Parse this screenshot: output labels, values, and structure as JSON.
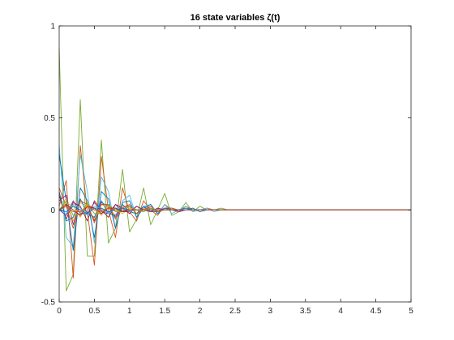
{
  "chart_data": {
    "type": "line",
    "title": "16 state variables ζ(t)",
    "xlabel": "",
    "ylabel": "",
    "xlim": [
      0,
      5
    ],
    "ylim": [
      -0.5,
      1
    ],
    "grid": false,
    "legend": "none",
    "x_ticks": [
      "0",
      "0.5",
      "1",
      "1.5",
      "2",
      "2.5",
      "3",
      "3.5",
      "4",
      "4.5",
      "5"
    ],
    "y_ticks": [
      "-0.5",
      "0",
      "0.5",
      "1"
    ],
    "x": [
      0,
      0.1,
      0.2,
      0.3,
      0.4,
      0.5,
      0.6,
      0.7,
      0.8,
      0.9,
      1.0,
      1.1,
      1.2,
      1.3,
      1.4,
      1.5,
      1.6,
      1.7,
      1.8,
      1.9,
      2.0,
      2.1,
      2.2,
      2.3,
      2.4,
      2.5,
      2.6,
      2.7,
      2.8,
      2.9,
      3.0,
      3.1,
      3.2,
      3.3,
      3.4,
      3.5,
      3.6,
      3.7,
      3.8,
      3.9,
      4.0,
      4.1,
      4.2,
      4.3,
      4.4,
      4.5,
      4.6,
      4.7,
      4.8,
      4.9,
      5.0
    ],
    "series": [
      {
        "color": "#77AC30",
        "values": [
          0.88,
          -0.44,
          -0.35,
          0.6,
          -0.25,
          -0.25,
          0.38,
          -0.18,
          -0.1,
          0.22,
          -0.12,
          -0.05,
          0.12,
          -0.08,
          0.0,
          0.09,
          -0.03,
          -0.01,
          0.04,
          -0.01,
          0.02,
          0.0,
          0.0,
          0.01,
          0.0,
          0.0,
          0.0,
          0.0,
          0.0,
          0.0,
          0.0,
          0.0,
          0.0,
          0.0,
          0.0,
          0.0,
          0.0,
          0.0,
          0.0,
          0.0,
          0.0,
          0.0,
          0.0,
          0.0,
          0.0,
          0.0,
          0.0,
          0.0,
          0.0,
          0.0,
          0.0
        ]
      },
      {
        "color": "#D95319",
        "values": [
          0.02,
          0.16,
          -0.37,
          0.35,
          -0.01,
          -0.3,
          0.29,
          0.0,
          -0.15,
          0.12,
          -0.01,
          -0.06,
          0.05,
          0.0,
          -0.03,
          0.03,
          0.0,
          -0.01,
          0.02,
          0.0,
          0.0,
          0.01,
          0.0,
          0.0,
          0.0,
          0.0,
          0.0,
          0.0,
          0.0,
          0.0,
          0.0,
          0.0,
          0.0,
          0.0,
          0.0,
          0.0,
          0.0,
          0.0,
          0.0,
          0.0,
          0.0,
          0.0,
          0.0,
          0.0,
          0.0,
          0.0,
          0.0,
          0.0,
          0.0,
          0.0,
          0.0
        ]
      },
      {
        "color": "#4DBEEE",
        "values": [
          0.35,
          -0.15,
          -0.2,
          0.3,
          0.1,
          -0.18,
          0.18,
          0.1,
          -0.1,
          0.05,
          0.08,
          -0.04,
          0.02,
          0.03,
          -0.02,
          0.03,
          -0.02,
          0.0,
          0.02,
          -0.01,
          0.0,
          0.01,
          -0.01,
          0.0,
          0.0,
          0.0,
          0.0,
          0.0,
          0.0,
          0.0,
          0.0,
          0.0,
          0.0,
          0.0,
          0.0,
          0.0,
          0.0,
          0.0,
          0.0,
          0.0,
          0.0,
          0.0,
          0.0,
          0.0,
          0.0,
          0.0,
          0.0,
          0.0,
          0.0,
          0.0,
          0.0
        ]
      },
      {
        "color": "#0072BD",
        "values": [
          0.3,
          0.05,
          -0.22,
          0.12,
          0.05,
          -0.15,
          0.1,
          0.06,
          -0.1,
          0.04,
          0.05,
          -0.04,
          0.01,
          0.03,
          -0.02,
          0.01,
          0.01,
          -0.01,
          0.0,
          0.01,
          -0.01,
          0.0,
          0.0,
          0.0,
          0.0,
          0.0,
          0.0,
          0.0,
          0.0,
          0.0,
          0.0,
          0.0,
          0.0,
          0.0,
          0.0,
          0.0,
          0.0,
          0.0,
          0.0,
          0.0,
          0.0,
          0.0,
          0.0,
          0.0,
          0.0,
          0.0,
          0.0,
          0.0,
          0.0,
          0.0,
          0.0
        ]
      },
      {
        "color": "#7E2F8E",
        "values": [
          0.05,
          0.08,
          -0.08,
          0.05,
          0.03,
          -0.06,
          0.04,
          0.02,
          -0.04,
          0.02,
          0.02,
          -0.02,
          0.01,
          0.01,
          -0.01,
          0.01,
          0.0,
          -0.01,
          0.0,
          0.0,
          0.0,
          0.0,
          0.0,
          0.0,
          0.0,
          0.0,
          0.0,
          0.0,
          0.0,
          0.0,
          0.0,
          0.0,
          0.0,
          0.0,
          0.0,
          0.0,
          0.0,
          0.0,
          0.0,
          0.0,
          0.0,
          0.0,
          0.0,
          0.0,
          0.0,
          0.0,
          0.0,
          0.0,
          0.0,
          0.0,
          0.0
        ]
      },
      {
        "color": "#EDB120",
        "values": [
          0.03,
          0.06,
          -0.06,
          0.04,
          0.02,
          -0.05,
          0.03,
          0.01,
          -0.03,
          0.02,
          0.01,
          -0.02,
          0.01,
          0.0,
          -0.01,
          0.01,
          0.0,
          0.0,
          0.0,
          0.0,
          0.0,
          0.0,
          0.0,
          0.0,
          0.0,
          0.0,
          0.0,
          0.0,
          0.0,
          0.0,
          0.0,
          0.0,
          0.0,
          0.0,
          0.0,
          0.0,
          0.0,
          0.0,
          0.0,
          0.0,
          0.0,
          0.0,
          0.0,
          0.0,
          0.0,
          0.0,
          0.0,
          0.0,
          0.0,
          0.0,
          0.0
        ]
      },
      {
        "color": "#A2142F",
        "values": [
          0.08,
          -0.05,
          0.04,
          0.02,
          -0.06,
          0.05,
          0.0,
          -0.04,
          0.03,
          0.01,
          -0.02,
          0.02,
          0.0,
          -0.01,
          0.01,
          0.0,
          0.0,
          0.0,
          0.0,
          0.0,
          0.0,
          0.0,
          0.0,
          0.0,
          0.0,
          0.0,
          0.0,
          0.0,
          0.0,
          0.0,
          0.0,
          0.0,
          0.0,
          0.0,
          0.0,
          0.0,
          0.0,
          0.0,
          0.0,
          0.0,
          0.0,
          0.0,
          0.0,
          0.0,
          0.0,
          0.0,
          0.0,
          0.0,
          0.0,
          0.0,
          0.0
        ]
      },
      {
        "color": "#0072BD",
        "values": [
          0.1,
          -0.06,
          -0.04,
          0.06,
          -0.02,
          -0.04,
          0.05,
          -0.02,
          -0.03,
          0.03,
          -0.01,
          -0.02,
          0.02,
          -0.01,
          -0.01,
          0.01,
          0.0,
          0.0,
          0.01,
          0.0,
          0.0,
          0.0,
          0.0,
          0.0,
          0.0,
          0.0,
          0.0,
          0.0,
          0.0,
          0.0,
          0.0,
          0.0,
          0.0,
          0.0,
          0.0,
          0.0,
          0.0,
          0.0,
          0.0,
          0.0,
          0.0,
          0.0,
          0.0,
          0.0,
          0.0,
          0.0,
          0.0,
          0.0,
          0.0,
          0.0,
          0.0
        ]
      },
      {
        "color": "#D95319",
        "values": [
          0.12,
          0.02,
          -0.1,
          0.05,
          0.03,
          -0.07,
          0.03,
          0.03,
          -0.05,
          0.01,
          0.03,
          -0.02,
          0.0,
          0.02,
          -0.01,
          0.0,
          0.01,
          0.0,
          0.0,
          0.0,
          0.0,
          0.0,
          0.0,
          0.0,
          0.0,
          0.0,
          0.0,
          0.0,
          0.0,
          0.0,
          0.0,
          0.0,
          0.0,
          0.0,
          0.0,
          0.0,
          0.0,
          0.0,
          0.0,
          0.0,
          0.0,
          0.0,
          0.0,
          0.0,
          0.0,
          0.0,
          0.0,
          0.0,
          0.0,
          0.0,
          0.0
        ]
      },
      {
        "color": "#EDB120",
        "values": [
          0.0,
          0.04,
          0.02,
          -0.04,
          0.03,
          0.01,
          -0.03,
          0.02,
          0.0,
          -0.02,
          0.01,
          0.0,
          -0.01,
          0.01,
          0.0,
          0.0,
          0.0,
          0.0,
          0.0,
          0.0,
          0.0,
          0.0,
          0.0,
          0.0,
          0.0,
          0.0,
          0.0,
          0.0,
          0.0,
          0.0,
          0.0,
          0.0,
          0.0,
          0.0,
          0.0,
          0.0,
          0.0,
          0.0,
          0.0,
          0.0,
          0.0,
          0.0,
          0.0,
          0.0,
          0.0,
          0.0,
          0.0,
          0.0,
          0.0,
          0.0,
          0.0
        ]
      },
      {
        "color": "#7E2F8E",
        "values": [
          0.0,
          -0.03,
          0.05,
          -0.02,
          -0.02,
          0.04,
          -0.01,
          -0.02,
          0.03,
          -0.01,
          -0.01,
          0.02,
          0.0,
          -0.01,
          0.01,
          0.0,
          0.0,
          0.0,
          0.0,
          0.0,
          0.0,
          0.0,
          0.0,
          0.0,
          0.0,
          0.0,
          0.0,
          0.0,
          0.0,
          0.0,
          0.0,
          0.0,
          0.0,
          0.0,
          0.0,
          0.0,
          0.0,
          0.0,
          0.0,
          0.0,
          0.0,
          0.0,
          0.0,
          0.0,
          0.0,
          0.0,
          0.0,
          0.0,
          0.0,
          0.0,
          0.0
        ]
      },
      {
        "color": "#77AC30",
        "values": [
          0.0,
          0.05,
          -0.03,
          -0.02,
          0.04,
          -0.02,
          -0.02,
          0.03,
          -0.01,
          -0.01,
          0.02,
          0.0,
          -0.01,
          0.01,
          0.0,
          0.0,
          0.0,
          0.0,
          0.0,
          0.0,
          0.0,
          0.0,
          0.0,
          0.0,
          0.0,
          0.0,
          0.0,
          0.0,
          0.0,
          0.0,
          0.0,
          0.0,
          0.0,
          0.0,
          0.0,
          0.0,
          0.0,
          0.0,
          0.0,
          0.0,
          0.0,
          0.0,
          0.0,
          0.0,
          0.0,
          0.0,
          0.0,
          0.0,
          0.0,
          0.0,
          0.0
        ]
      },
      {
        "color": "#4DBEEE",
        "values": [
          0.0,
          -0.02,
          0.03,
          0.01,
          -0.03,
          0.02,
          0.01,
          -0.02,
          0.01,
          0.01,
          -0.01,
          0.0,
          0.0,
          0.0,
          0.0,
          0.0,
          0.0,
          0.0,
          0.0,
          0.0,
          0.0,
          0.0,
          0.0,
          0.0,
          0.0,
          0.0,
          0.0,
          0.0,
          0.0,
          0.0,
          0.0,
          0.0,
          0.0,
          0.0,
          0.0,
          0.0,
          0.0,
          0.0,
          0.0,
          0.0,
          0.0,
          0.0,
          0.0,
          0.0,
          0.0,
          0.0,
          0.0,
          0.0,
          0.0,
          0.0,
          0.0
        ]
      },
      {
        "color": "#A2142F",
        "values": [
          0.0,
          0.03,
          0.0,
          -0.03,
          0.02,
          0.01,
          -0.02,
          0.01,
          0.01,
          -0.01,
          0.0,
          0.0,
          0.0,
          0.0,
          0.0,
          0.0,
          0.0,
          0.0,
          0.0,
          0.0,
          0.0,
          0.0,
          0.0,
          0.0,
          0.0,
          0.0,
          0.0,
          0.0,
          0.0,
          0.0,
          0.0,
          0.0,
          0.0,
          0.0,
          0.0,
          0.0,
          0.0,
          0.0,
          0.0,
          0.0,
          0.0,
          0.0,
          0.0,
          0.0,
          0.0,
          0.0,
          0.0,
          0.0,
          0.0,
          0.0,
          0.0
        ]
      },
      {
        "color": "#0072BD",
        "values": [
          0.0,
          -0.01,
          0.02,
          0.0,
          -0.02,
          0.01,
          0.01,
          -0.01,
          0.0,
          0.01,
          0.0,
          0.0,
          0.0,
          0.0,
          0.0,
          0.0,
          0.0,
          0.0,
          0.0,
          0.0,
          0.0,
          0.0,
          0.0,
          0.0,
          0.0,
          0.0,
          0.0,
          0.0,
          0.0,
          0.0,
          0.0,
          0.0,
          0.0,
          0.0,
          0.0,
          0.0,
          0.0,
          0.0,
          0.0,
          0.0,
          0.0,
          0.0,
          0.0,
          0.0,
          0.0,
          0.0,
          0.0,
          0.0,
          0.0,
          0.0,
          0.0
        ]
      },
      {
        "color": "#D95319",
        "values": [
          0.0,
          0.02,
          -0.01,
          -0.01,
          0.02,
          0.0,
          -0.01,
          0.01,
          0.0,
          0.0,
          0.0,
          0.0,
          0.0,
          0.0,
          0.0,
          0.0,
          0.0,
          0.0,
          0.0,
          0.0,
          0.0,
          0.0,
          0.0,
          0.0,
          0.0,
          0.0,
          0.0,
          0.0,
          0.0,
          0.0,
          0.0,
          0.0,
          0.0,
          0.0,
          0.0,
          0.0,
          0.0,
          0.0,
          0.0,
          0.0,
          0.0,
          0.0,
          0.0,
          0.0,
          0.0,
          0.0,
          0.0,
          0.0,
          0.0,
          0.0,
          0.0
        ]
      }
    ]
  }
}
